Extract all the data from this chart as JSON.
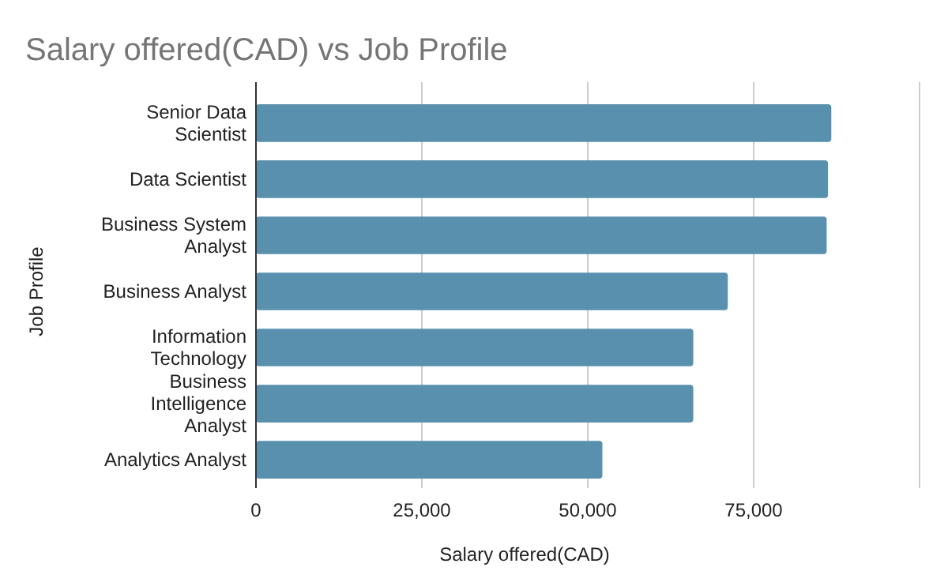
{
  "chart_data": {
    "type": "bar",
    "orientation": "horizontal",
    "title": "Salary offered(CAD) vs Job Profile",
    "xlabel": "Salary offered(CAD)",
    "ylabel": "Job Profile",
    "categories": [
      "Senior Data Scientist",
      "Data Scientist",
      "Business System Analyst",
      "Business Analyst",
      "Information Technology",
      "Business Intelligence Analyst",
      "Analytics Analyst"
    ],
    "values": [
      86700,
      86200,
      86000,
      71100,
      65900,
      65900,
      52200
    ],
    "color": "#5990ae",
    "xlim": [
      0,
      100000
    ],
    "xticks": [
      {
        "value": 0,
        "label": "0"
      },
      {
        "value": 25000,
        "label": "25,000"
      },
      {
        "value": 50000,
        "label": "50,000"
      },
      {
        "value": 75000,
        "label": "75,000"
      },
      {
        "value": 100000,
        "label": null
      }
    ],
    "grid": "x"
  }
}
